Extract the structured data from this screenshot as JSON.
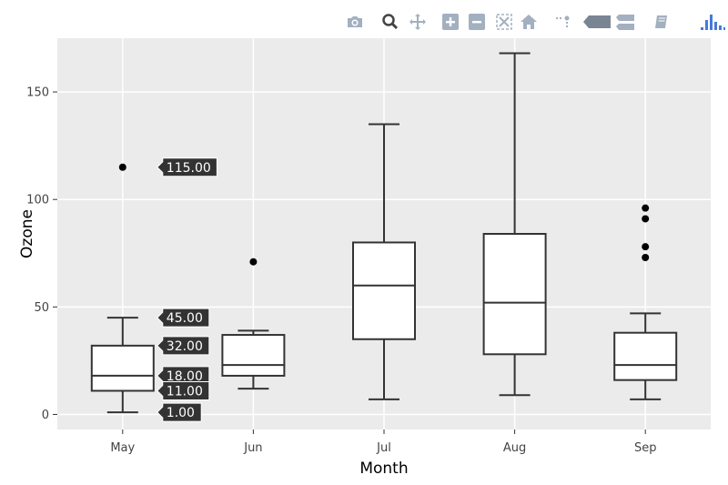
{
  "toolbar": {
    "buttons": [
      {
        "name": "camera-icon",
        "title": "Download plot as a png"
      },
      {
        "name": "zoom-icon",
        "title": "Zoom"
      },
      {
        "name": "pan-icon",
        "title": "Pan"
      },
      {
        "name": "zoom-in-icon",
        "title": "Zoom in"
      },
      {
        "name": "zoom-out-icon",
        "title": "Zoom out"
      },
      {
        "name": "autoscale-icon",
        "title": "Autoscale"
      },
      {
        "name": "reset-axes-icon",
        "title": "Reset axes"
      },
      {
        "name": "spike-lines-icon",
        "title": "Toggle Spike Lines"
      },
      {
        "name": "hover-closest-icon",
        "title": "Show closest data on hover"
      },
      {
        "name": "hover-compare-icon",
        "title": "Compare data on hover"
      },
      {
        "name": "edit-chart-icon",
        "title": "Edit in Chart Studio"
      },
      {
        "name": "plotly-logo-icon",
        "title": "Produced with Plotly"
      }
    ]
  },
  "colors": {
    "panel": "#ebebeb",
    "grid": "#ffffff",
    "box_line": "#333333",
    "box_fill": "#ffffff",
    "hover_bg": "#333333",
    "toolbar_icon": "#a3b0c0",
    "toolbar_icon_active": "#444444",
    "logo": "#3f4f75"
  },
  "chart_data": {
    "type": "box",
    "title": "",
    "xlabel": "Month",
    "ylabel": "Ozone",
    "categories": [
      "May",
      "Jun",
      "Jul",
      "Aug",
      "Sep"
    ],
    "ylim": [
      -7,
      175
    ],
    "yticks": [
      0,
      50,
      100,
      150
    ],
    "grid": true,
    "legend": "none",
    "boxes": [
      {
        "category": "May",
        "min": 1,
        "q1": 11,
        "median": 18,
        "q3": 32,
        "max": 45,
        "outliers": [
          115
        ]
      },
      {
        "category": "Jun",
        "min": 12,
        "q1": 18,
        "median": 23,
        "q3": 37,
        "max": 39,
        "outliers": [
          71
        ]
      },
      {
        "category": "Jul",
        "min": 7,
        "q1": 35,
        "median": 60,
        "q3": 80,
        "max": 135,
        "outliers": []
      },
      {
        "category": "Aug",
        "min": 9,
        "q1": 28,
        "median": 52,
        "q3": 84,
        "max": 168,
        "outliers": []
      },
      {
        "category": "Sep",
        "min": 7,
        "q1": 16,
        "median": 23,
        "q3": 38,
        "max": 47,
        "outliers": [
          73,
          78,
          91,
          96
        ]
      }
    ],
    "hover_labels": [
      {
        "category": "May",
        "value": 115,
        "text": "115.00"
      },
      {
        "category": "May",
        "value": 45,
        "text": "45.00"
      },
      {
        "category": "May",
        "value": 32,
        "text": "32.00"
      },
      {
        "category": "May",
        "value": 18,
        "text": "18.00"
      },
      {
        "category": "May",
        "value": 11,
        "text": "11.00"
      },
      {
        "category": "May",
        "value": 1,
        "text": "1.00"
      }
    ]
  }
}
